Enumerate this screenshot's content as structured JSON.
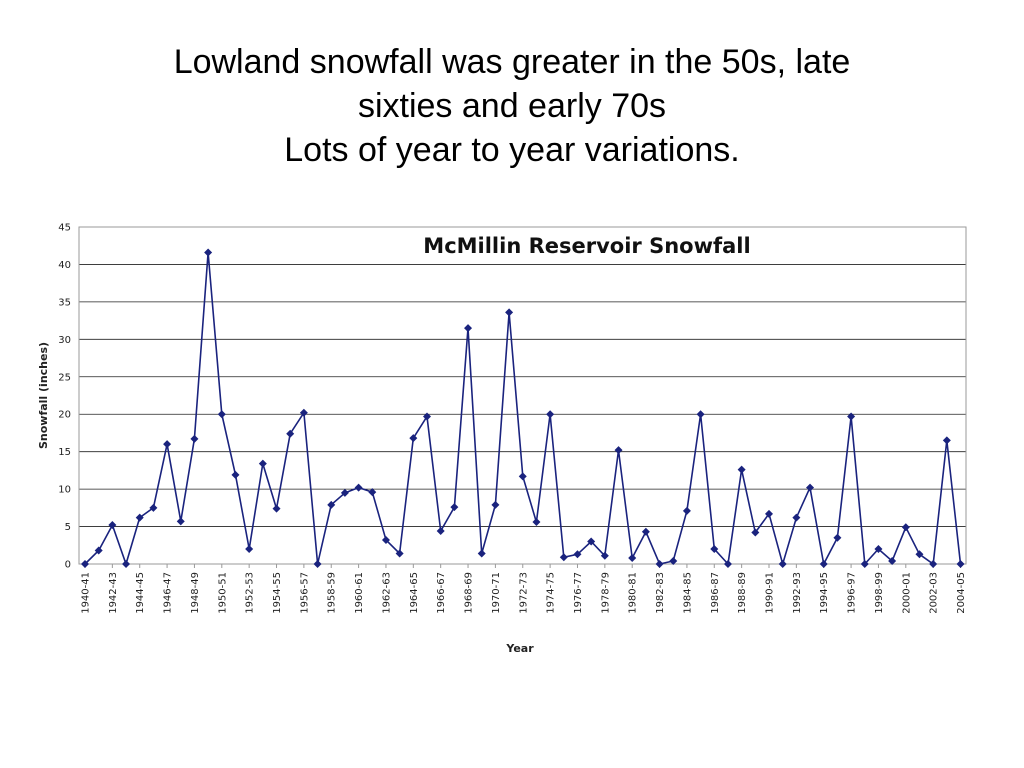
{
  "slide": {
    "title_lines": [
      "Lowland snowfall was greater in the 50s, late",
      "sixties and early 70s",
      "Lots of year to year variations."
    ]
  },
  "chart_data": {
    "type": "line",
    "title": "McMillin Reservoir Snowfall",
    "xlabel": "Year",
    "ylabel": "Snowfall (inches)",
    "ylim": [
      0,
      45
    ],
    "yticks": [
      0,
      5,
      10,
      15,
      20,
      25,
      30,
      35,
      40,
      45
    ],
    "grid": "horizontal",
    "line_color": "#1a237e",
    "marker": "diamond",
    "categories": [
      "1940-41",
      "1941-42",
      "1942-43",
      "1943-44",
      "1944-45",
      "1945-46",
      "1946-47",
      "1947-48",
      "1948-49",
      "1949-50",
      "1950-51",
      "1951-52",
      "1952-53",
      "1953-54",
      "1954-55",
      "1955-56",
      "1956-57",
      "1957-58",
      "1958-59",
      "1959-60",
      "1960-61",
      "1961-62",
      "1962-63",
      "1963-64",
      "1964-65",
      "1965-66",
      "1966-67",
      "1967-68",
      "1968-69",
      "1969-70",
      "1970-71",
      "1971-72",
      "1972-73",
      "1973-74",
      "1974-75",
      "1975-76",
      "1976-77",
      "1977-78",
      "1978-79",
      "1979-80",
      "1980-81",
      "1981-82",
      "1982-83",
      "1983-84",
      "1984-85",
      "1985-86",
      "1986-87",
      "1987-88",
      "1988-89",
      "1989-90",
      "1990-91",
      "1991-92",
      "1992-93",
      "1993-94",
      "1994-95",
      "1995-96",
      "1996-97",
      "1997-98",
      "1998-99",
      "1999-00",
      "2000-01",
      "2001-02",
      "2002-03",
      "2003-04",
      "2004-05"
    ],
    "tick_labels": [
      "1940-41",
      "1942-43",
      "1944-45",
      "1946-47",
      "1948-49",
      "1950-51",
      "1952-53",
      "1954-55",
      "1956-57",
      "1958-59",
      "1960-61",
      "1962-63",
      "1964-65",
      "1966-67",
      "1968-69",
      "1970-71",
      "1972-73",
      "1974-75",
      "1976-77",
      "1978-79",
      "1980-81",
      "1982-83",
      "1984-85",
      "1986-87",
      "1988-89",
      "1990-91",
      "1992-93",
      "1994-95",
      "1996-97",
      "1998-99",
      "2000-01",
      "2002-03",
      "2004-05"
    ],
    "series": [
      {
        "values": [
          0,
          1.8,
          5.2,
          0,
          6.2,
          7.5,
          16,
          5.7,
          16.7,
          41.6,
          20,
          11.9,
          2,
          13.4,
          7.4,
          17.4,
          20.2,
          0,
          7.9,
          9.5,
          10.2,
          9.6,
          3.2,
          1.4,
          16.8,
          19.7,
          4.4,
          7.6,
          31.5,
          1.4,
          7.9,
          33.6,
          11.7,
          5.6,
          20,
          0.9,
          1.3,
          3,
          1.1,
          15.2,
          0.8,
          4.3,
          0,
          0.4,
          7.1,
          20,
          2,
          0,
          12.6,
          4.2,
          6.7,
          0,
          6.2,
          10.2,
          0,
          3.5,
          19.7,
          0,
          2,
          0.4,
          4.9,
          1.3,
          0,
          16.5,
          0
        ]
      }
    ]
  }
}
